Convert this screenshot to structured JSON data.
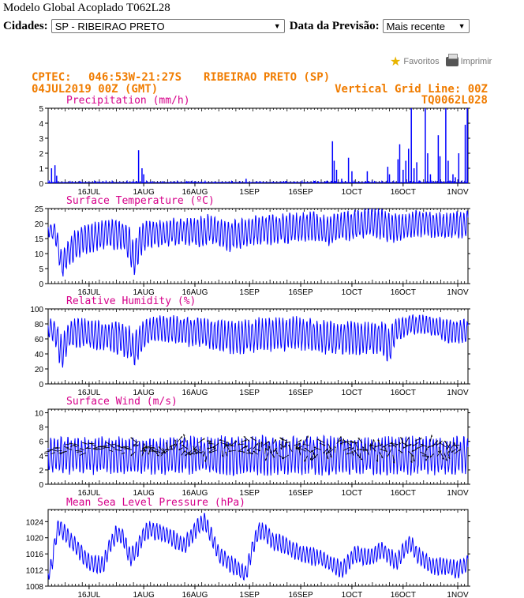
{
  "page": {
    "title": "Modelo Global Acoplado T062L28",
    "cidades_label": "Cidades:",
    "cidade_selected": "SP - RIBEIRAO PRETO",
    "data_label": "Data da Previsão:",
    "data_selected": "Mais recente",
    "favoritos": "Favoritos",
    "imprimir": "Imprimir"
  },
  "header": {
    "line1_left": "CPTEC:",
    "coords": "046:53W-21:27S",
    "station": "RIBEIRAO PRETO (SP)",
    "date": "04JUL2019 00Z (GMT)",
    "grid": "Vertical Grid Line: 00Z",
    "model": "TQ0062L028"
  },
  "colors": {
    "header": "#f07c00",
    "panel_title": "#d6008a",
    "series": "#0000ff",
    "wind_vector": "#000000"
  },
  "chart_data": [
    {
      "type": "line",
      "title": "Precipitation (mm/h)",
      "x_tick_labels": [
        "16JUL",
        "1AUG",
        "16AUG",
        "1SEP",
        "16SEP",
        "1OCT",
        "16OCT",
        "1NOV"
      ],
      "x_tick_days": [
        12,
        28,
        43,
        59,
        74,
        89,
        104,
        120
      ],
      "y_ticks": [
        0,
        1,
        2,
        3,
        4,
        5
      ],
      "ylim": [
        0,
        5
      ],
      "spikes": [
        {
          "day": 1,
          "value": 1.0
        },
        {
          "day": 2,
          "value": 1.2
        },
        {
          "day": 2.5,
          "value": 0.5
        },
        {
          "day": 26.5,
          "value": 2.2
        },
        {
          "day": 27.5,
          "value": 1.0
        },
        {
          "day": 28,
          "value": 0.6
        },
        {
          "day": 58,
          "value": 0.3
        },
        {
          "day": 83.3,
          "value": 2.8
        },
        {
          "day": 83.8,
          "value": 1.5
        },
        {
          "day": 84.5,
          "value": 0.9
        },
        {
          "day": 86,
          "value": 0.3
        },
        {
          "day": 88,
          "value": 1.7
        },
        {
          "day": 89,
          "value": 0.8
        },
        {
          "day": 93.5,
          "value": 0.8
        },
        {
          "day": 99.5,
          "value": 1.1
        },
        {
          "day": 100,
          "value": 0.6
        },
        {
          "day": 102.5,
          "value": 1.6
        },
        {
          "day": 103,
          "value": 2.6
        },
        {
          "day": 104,
          "value": 0.9
        },
        {
          "day": 104.8,
          "value": 1.5
        },
        {
          "day": 105.6,
          "value": 2.3
        },
        {
          "day": 106.4,
          "value": 5.0
        },
        {
          "day": 107.2,
          "value": 1.0
        },
        {
          "day": 108,
          "value": 1.4
        },
        {
          "day": 110.5,
          "value": 5.0
        },
        {
          "day": 111.2,
          "value": 2.0
        },
        {
          "day": 112,
          "value": 0.6
        },
        {
          "day": 114.3,
          "value": 3.2
        },
        {
          "day": 114.8,
          "value": 1.8
        },
        {
          "day": 116.5,
          "value": 5.0
        },
        {
          "day": 117.2,
          "value": 1.5
        },
        {
          "day": 118.6,
          "value": 0.6
        },
        {
          "day": 119.3,
          "value": 0.4
        },
        {
          "day": 120.3,
          "value": 2.0
        },
        {
          "day": 122.2,
          "value": 3.9
        },
        {
          "day": 122.8,
          "value": 5.0
        }
      ]
    },
    {
      "type": "line",
      "title": "Surface Temperature (ºC)",
      "x_tick_labels": [
        "16JUL",
        "1AUG",
        "16AUG",
        "1SEP",
        "16SEP",
        "1OCT",
        "16OCT",
        "1NOV"
      ],
      "y_ticks": [
        0,
        5,
        10,
        15,
        20,
        25
      ],
      "ylim": [
        0,
        25
      ],
      "mean_days": [
        0,
        2,
        3,
        4,
        6,
        8,
        12,
        18,
        22,
        24,
        25,
        27,
        29,
        33,
        38,
        44,
        48,
        52,
        56,
        60,
        64,
        70,
        78,
        82,
        86,
        92,
        96,
        100,
        104,
        108,
        112,
        116,
        120,
        123
      ],
      "mean_values": [
        18,
        17,
        12,
        6,
        10,
        13,
        15.5,
        16.5,
        16,
        13,
        8,
        14,
        16.5,
        16.5,
        17.5,
        17,
        18.5,
        15.5,
        16.5,
        18,
        18,
        18.5,
        19,
        17.5,
        19,
        20,
        20.5,
        18.5,
        19,
        20,
        20,
        19,
        19.5,
        20
      ],
      "amplitude": [
        2,
        3,
        4,
        4,
        4,
        4.5,
        4.5,
        4.5,
        4.5,
        5,
        6,
        5,
        4,
        4,
        4,
        4.5,
        4.5,
        4.5,
        4.5,
        4.5,
        4.5,
        4.5,
        4.5,
        4.5,
        4.5,
        4.5,
        4.5,
        4.5,
        4,
        4,
        4,
        4,
        4,
        4
      ]
    },
    {
      "type": "line",
      "title": "Relative Humidity (%)",
      "x_tick_labels": [
        "16JUL",
        "1AUG",
        "16AUG",
        "1SEP",
        "16SEP",
        "1OCT",
        "16OCT",
        "1NOV"
      ],
      "y_ticks": [
        0,
        20,
        40,
        60,
        80,
        100
      ],
      "ylim": [
        0,
        100
      ],
      "mean_days": [
        0,
        2,
        3,
        4,
        6,
        10,
        16,
        20,
        24,
        25,
        28,
        32,
        40,
        46,
        52,
        56,
        62,
        68,
        74,
        80,
        86,
        92,
        98,
        100,
        102,
        106,
        112,
        118,
        123
      ],
      "mean_values": [
        75,
        70,
        55,
        40,
        65,
        68,
        65,
        62,
        55,
        45,
        65,
        75,
        70,
        68,
        62,
        62,
        66,
        66,
        68,
        62,
        62,
        62,
        60,
        50,
        72,
        80,
        78,
        70,
        70
      ],
      "amplitude": [
        10,
        15,
        20,
        20,
        18,
        18,
        18,
        20,
        20,
        22,
        18,
        15,
        18,
        18,
        20,
        20,
        20,
        20,
        20,
        20,
        20,
        20,
        20,
        22,
        15,
        12,
        12,
        15,
        15
      ]
    },
    {
      "type": "line",
      "title": "Surface Wind (m/s)",
      "x_tick_labels": [
        "16JUL",
        "1AUG",
        "16AUG",
        "1SEP",
        "16SEP",
        "1OCT",
        "16OCT",
        "1NOV"
      ],
      "y_ticks": [
        0,
        2,
        4,
        6,
        8,
        10
      ],
      "ylim": [
        0,
        10.5
      ],
      "mean_days": [
        0,
        30,
        60,
        90,
        123
      ],
      "mean_values": [
        4,
        4,
        4,
        4,
        4
      ],
      "amplitude": [
        2.3,
        2.3,
        2.5,
        2.4,
        2.4
      ],
      "vector_band": {
        "center": 5.0,
        "halfwidth": 1.1
      }
    },
    {
      "type": "line",
      "title": "Mean Sea Level Pressure (hPa)",
      "x_tick_labels": [
        "16JUL",
        "1AUG",
        "16AUG",
        "1SEP",
        "16SEP",
        "1OCT",
        "16OCT",
        "1NOV"
      ],
      "y_ticks": [
        1008,
        1012,
        1016,
        1020,
        1024
      ],
      "ylim": [
        1008,
        1027
      ],
      "mean_days": [
        0,
        1,
        2,
        3,
        5,
        8,
        12,
        16,
        18,
        20,
        22,
        24,
        26,
        28,
        30,
        34,
        40,
        44,
        46,
        48,
        50,
        54,
        56,
        58,
        60,
        62,
        64,
        66,
        70,
        74,
        80,
        86,
        90,
        94,
        98,
        102,
        106,
        108,
        112,
        116,
        120,
        123
      ],
      "mean_values": [
        1011,
        1013,
        1019,
        1023,
        1021,
        1018,
        1014,
        1013,
        1018,
        1021,
        1020,
        1015,
        1017,
        1021,
        1022,
        1021,
        1018,
        1023,
        1024,
        1020,
        1016,
        1013,
        1012,
        1011,
        1018,
        1022,
        1021,
        1019,
        1018,
        1016,
        1015,
        1012,
        1016,
        1015,
        1017,
        1014,
        1019,
        1016,
        1013,
        1013,
        1012,
        1014
      ],
      "amplitude": [
        1.5,
        2,
        2,
        2,
        2,
        2,
        2,
        2,
        2,
        2,
        2,
        2,
        2,
        2,
        2,
        2,
        2,
        2,
        2,
        2,
        2,
        2,
        2,
        2,
        2,
        2,
        2,
        2,
        2,
        2,
        2,
        2,
        2,
        2,
        2,
        2,
        2,
        2,
        2,
        2,
        2,
        2
      ]
    }
  ]
}
